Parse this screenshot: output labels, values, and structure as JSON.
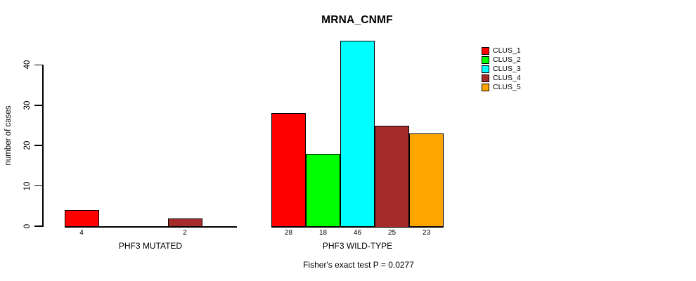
{
  "chart_data": {
    "type": "bar",
    "title": "MRNA_CNMF",
    "ylabel": "number of cases",
    "xlabel": "",
    "categories": [
      "PHF3 MUTATED",
      "PHF3 WILD-TYPE"
    ],
    "series": [
      {
        "name": "CLUS_1",
        "color": "#FF0000",
        "values": [
          4,
          28
        ]
      },
      {
        "name": "CLUS_2",
        "color": "#00FF00",
        "values": [
          0,
          18
        ]
      },
      {
        "name": "CLUS_3",
        "color": "#00FFFF",
        "values": [
          0,
          46
        ]
      },
      {
        "name": "CLUS_4",
        "color": "#A52A2A",
        "values": [
          2,
          25
        ]
      },
      {
        "name": "CLUS_5",
        "color": "#FFA500",
        "values": [
          0,
          23
        ]
      }
    ],
    "yticks": [
      0,
      10,
      20,
      30,
      40
    ],
    "ylim": [
      0,
      46
    ],
    "grid": false,
    "legend_position": "top-right",
    "bar_value_labels": "non-zero bar values printed below baseline",
    "annotation": "Fisher's exact test P = 0.0277",
    "axis_color": "#000000",
    "background_color": "#FFFFFF"
  }
}
